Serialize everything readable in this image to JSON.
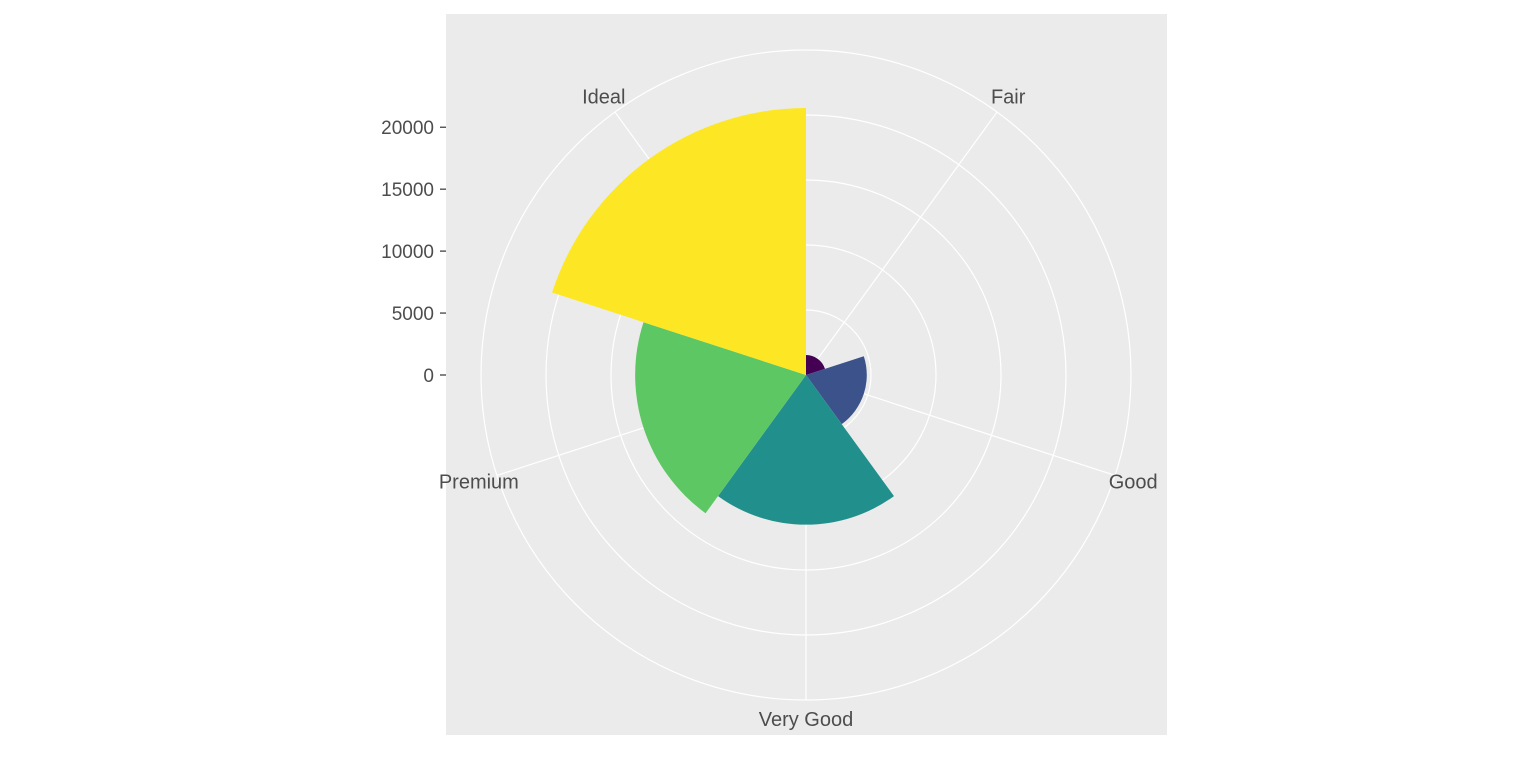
{
  "chart_data": {
    "type": "bar",
    "coord": "polar",
    "categories": [
      "Fair",
      "Good",
      "Very Good",
      "Premium",
      "Ideal"
    ],
    "values": [
      1610,
      4906,
      12082,
      13791,
      21551
    ],
    "colors": [
      "#440154",
      "#3B528B",
      "#21908C",
      "#5DC863",
      "#FDE725"
    ],
    "ticks": [
      0,
      5000,
      10000,
      15000,
      20000
    ],
    "ylim": [
      0,
      21551
    ],
    "grid": true,
    "legend": "none",
    "background": "#EBEBEB",
    "gridline_color": "#FFFFFF"
  }
}
